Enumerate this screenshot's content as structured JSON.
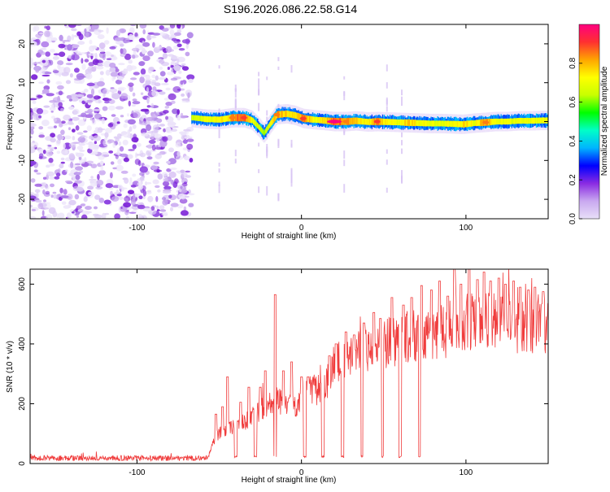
{
  "title": "S196.2026.086.22.58.G14",
  "chart_data": [
    {
      "type": "heatmap",
      "name": "spectrogram",
      "xlabel": "Height of straight line (km)",
      "ylabel": "Frequency (Hz)",
      "xlim": [
        -165,
        150
      ],
      "ylim": [
        -25,
        25
      ],
      "xticks": [
        -100,
        0,
        100
      ],
      "yticks": [
        -20,
        -10,
        0,
        10,
        20
      ],
      "noise_region_x": [
        -165,
        -67
      ],
      "signal_start_x": -67,
      "trace": [
        {
          "x": -66,
          "y": 1.0,
          "a": 0.45
        },
        {
          "x": -58,
          "y": 0.6,
          "a": 0.55
        },
        {
          "x": -50,
          "y": 0.5,
          "a": 0.6
        },
        {
          "x": -42,
          "y": 1.0,
          "a": 0.85
        },
        {
          "x": -35,
          "y": 1.0,
          "a": 0.9
        },
        {
          "x": -30,
          "y": 0.3,
          "a": 0.55
        },
        {
          "x": -26,
          "y": -1.5,
          "a": 0.45
        },
        {
          "x": -23,
          "y": -3.0,
          "a": 0.4
        },
        {
          "x": -19,
          "y": -0.5,
          "a": 0.55
        },
        {
          "x": -15,
          "y": 1.8,
          "a": 0.85
        },
        {
          "x": -9,
          "y": 2.0,
          "a": 0.7
        },
        {
          "x": -4,
          "y": 1.6,
          "a": 0.65
        },
        {
          "x": 1,
          "y": 0.8,
          "a": 0.9
        },
        {
          "x": 7,
          "y": 0.5,
          "a": 0.6
        },
        {
          "x": 13,
          "y": 0.3,
          "a": 0.65
        },
        {
          "x": 20,
          "y": 0.0,
          "a": 1.0
        },
        {
          "x": 27,
          "y": 0.0,
          "a": 0.85
        },
        {
          "x": 33,
          "y": 0.2,
          "a": 0.75
        },
        {
          "x": 40,
          "y": -0.1,
          "a": 0.6
        },
        {
          "x": 46,
          "y": 0.0,
          "a": 0.9
        },
        {
          "x": 52,
          "y": -0.1,
          "a": 0.6
        },
        {
          "x": 58,
          "y": -0.2,
          "a": 0.55
        },
        {
          "x": 65,
          "y": -0.3,
          "a": 0.75
        },
        {
          "x": 72,
          "y": -0.4,
          "a": 0.6
        },
        {
          "x": 78,
          "y": -0.5,
          "a": 0.55
        },
        {
          "x": 85,
          "y": -0.5,
          "a": 0.55
        },
        {
          "x": 92,
          "y": -0.6,
          "a": 0.6
        },
        {
          "x": 98,
          "y": -0.7,
          "a": 0.7
        },
        {
          "x": 105,
          "y": -0.4,
          "a": 0.6
        },
        {
          "x": 112,
          "y": -0.2,
          "a": 0.85
        },
        {
          "x": 118,
          "y": 0.0,
          "a": 0.6
        },
        {
          "x": 125,
          "y": 0.0,
          "a": 0.55
        },
        {
          "x": 132,
          "y": 0.2,
          "a": 0.55
        },
        {
          "x": 139,
          "y": 0.2,
          "a": 0.6
        },
        {
          "x": 146,
          "y": 0.3,
          "a": 0.55
        }
      ],
      "vertical_streaks_x": [
        -50,
        -40,
        -26,
        -21,
        -14,
        -6,
        26,
        52,
        61
      ],
      "colorbar": {
        "label": "Normalized spectral amplitude",
        "range": [
          0,
          1
        ],
        "ticks": [
          "0.0",
          "0.2",
          "0.4",
          "0.6",
          "0.8"
        ],
        "tick_values": [
          0.0,
          0.2,
          0.4,
          0.6,
          0.8
        ],
        "stops": [
          "#e8e0f8",
          "#c9a8f0",
          "#8a2be2",
          "#0000ff",
          "#00b4ff",
          "#00ffc8",
          "#00ff00",
          "#c8ff00",
          "#ffff00",
          "#ffa500",
          "#ff3030",
          "#ff0080"
        ]
      }
    },
    {
      "type": "line",
      "name": "snr",
      "xlabel": "Height of straight line (km)",
      "ylabel": "SNR (10 * v/v)",
      "xlim": [
        -165,
        150
      ],
      "ylim": [
        0,
        650
      ],
      "xticks": [
        -100,
        0,
        100
      ],
      "yticks": [
        0,
        200,
        400,
        600
      ],
      "color": "#f03c3c",
      "baseline_end_x": -57,
      "baseline_level": 18,
      "envelope": [
        {
          "x": -57,
          "y": 18
        },
        {
          "x": -52,
          "y": 90
        },
        {
          "x": -45,
          "y": 115
        },
        {
          "x": -38,
          "y": 125
        },
        {
          "x": -30,
          "y": 150
        },
        {
          "x": -22,
          "y": 190
        },
        {
          "x": -15,
          "y": 210
        },
        {
          "x": -10,
          "y": 190
        },
        {
          "x": -3,
          "y": 195
        },
        {
          "x": 3,
          "y": 240
        },
        {
          "x": 10,
          "y": 240
        },
        {
          "x": 16,
          "y": 270
        },
        {
          "x": 20,
          "y": 325
        },
        {
          "x": 28,
          "y": 345
        },
        {
          "x": 35,
          "y": 360
        },
        {
          "x": 42,
          "y": 380
        },
        {
          "x": 50,
          "y": 390
        },
        {
          "x": 60,
          "y": 405
        },
        {
          "x": 70,
          "y": 420
        },
        {
          "x": 80,
          "y": 430
        },
        {
          "x": 90,
          "y": 440
        },
        {
          "x": 100,
          "y": 460
        },
        {
          "x": 115,
          "y": 465
        },
        {
          "x": 130,
          "y": 460
        },
        {
          "x": 150,
          "y": 455
        }
      ],
      "dropouts_x": [
        -40,
        -28,
        -16,
        2,
        13,
        25,
        37,
        49,
        60,
        72
      ],
      "dropout_level": 20,
      "spikes": [
        {
          "x": -52,
          "y": 165
        },
        {
          "x": -48,
          "y": 190
        },
        {
          "x": -45,
          "y": 290
        },
        {
          "x": -37,
          "y": 205
        },
        {
          "x": -32,
          "y": 255
        },
        {
          "x": -25,
          "y": 255
        },
        {
          "x": -22,
          "y": 310
        },
        {
          "x": -16,
          "y": 565
        },
        {
          "x": -11,
          "y": 310
        },
        {
          "x": -6,
          "y": 340
        },
        {
          "x": 0,
          "y": 290
        },
        {
          "x": 4,
          "y": 290
        },
        {
          "x": 17,
          "y": 360
        },
        {
          "x": 21,
          "y": 400
        },
        {
          "x": 27,
          "y": 440
        },
        {
          "x": 32,
          "y": 430
        },
        {
          "x": 38,
          "y": 470
        },
        {
          "x": 44,
          "y": 505
        },
        {
          "x": 48,
          "y": 485
        },
        {
          "x": 55,
          "y": 555
        },
        {
          "x": 62,
          "y": 530
        },
        {
          "x": 67,
          "y": 555
        },
        {
          "x": 73,
          "y": 595
        },
        {
          "x": 79,
          "y": 580
        },
        {
          "x": 84,
          "y": 610
        },
        {
          "x": 89,
          "y": 560
        },
        {
          "x": 93,
          "y": 650
        },
        {
          "x": 97,
          "y": 600
        },
        {
          "x": 102,
          "y": 650
        },
        {
          "x": 107,
          "y": 615
        },
        {
          "x": 111,
          "y": 640
        },
        {
          "x": 115,
          "y": 610
        },
        {
          "x": 120,
          "y": 620
        },
        {
          "x": 124,
          "y": 600
        },
        {
          "x": 129,
          "y": 610
        },
        {
          "x": 133,
          "y": 590
        },
        {
          "x": 138,
          "y": 580
        },
        {
          "x": 142,
          "y": 590
        },
        {
          "x": 147,
          "y": 575
        }
      ]
    }
  ]
}
